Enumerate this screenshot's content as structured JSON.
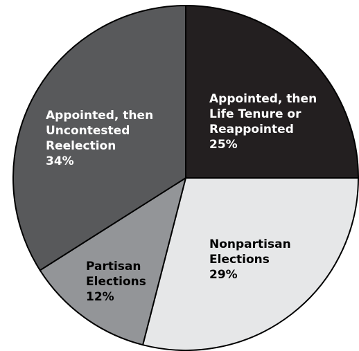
{
  "chart_data": {
    "type": "pie",
    "slices": [
      {
        "name": "Appointed, then Life Tenure or Reappointed",
        "value": 25,
        "label_lines": [
          "Appointed, then",
          "Life Tenure or",
          "Reappointed",
          "25%"
        ],
        "color": "#231f20",
        "text_color": "#ffffff"
      },
      {
        "name": "Nonpartisan Elections",
        "value": 29,
        "label_lines": [
          "Nonpartisan",
          "Elections",
          "29%"
        ],
        "color": "#e6e7e8",
        "text_color": "#000000"
      },
      {
        "name": "Partisan Elections",
        "value": 12,
        "label_lines": [
          "Partisan",
          "Elections",
          "12%"
        ],
        "color": "#939598",
        "text_color": "#000000"
      },
      {
        "name": "Appointed, then Uncontested Reelection",
        "value": 34,
        "label_lines": [
          "Appointed, then",
          "Uncontested",
          "Reelection",
          "34%"
        ],
        "color": "#58595b",
        "text_color": "#ffffff"
      }
    ],
    "start_angle": "top (12 o'clock)",
    "direction": "clockwise",
    "legend": "none"
  }
}
